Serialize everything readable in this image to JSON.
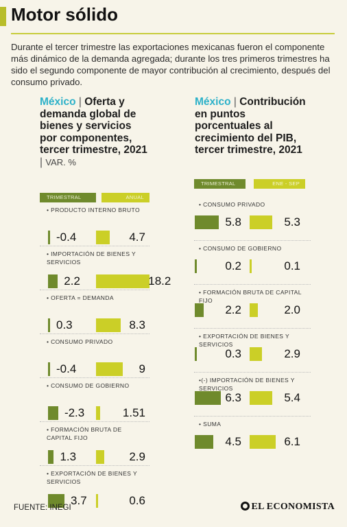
{
  "header": {
    "title": "Motor sólido",
    "intro": "Durante el tercer trimestre las exportaciones mexicanas fueron el componente más dinámico de la demanda agregada; durante los tres primeros trimestres ha sido el segundo componente de mayor contribución al crecimiento, después del consumo privado."
  },
  "footer": {
    "source": "FUENTE: INEGI",
    "brand": "EL ECONOMISTA"
  },
  "chart_data": [
    {
      "type": "bar",
      "country": "México",
      "title": "Oferta y demanda global de bienes y servicios por componentes, tercer trimestre, 2021",
      "unit": "VAR. %",
      "categories": [
        "PRODUCTO INTERNO BRUTO",
        "IMPORTACIÓN DE BIENES Y SERVICIOS",
        "OFERTA = DEMANDA",
        "CONSUMO PRIVADO",
        "CONSUMO DE GOBIERNO",
        "FORMACIÓN BRUTA DE CAPITAL FIJO",
        "EXPORTACIÓN DE BIENES Y SERVICIOS"
      ],
      "series": [
        {
          "name": "TRIMESTRAL",
          "values": [
            -0.4,
            2.2,
            0.3,
            -0.4,
            -2.3,
            1.3,
            3.7
          ],
          "labels": [
            "-0.4",
            "2.2",
            "0.3",
            "-0.4",
            "-2.3",
            "1.3",
            "3.7"
          ]
        },
        {
          "name": "ANUAL",
          "values": [
            4.7,
            18.2,
            8.3,
            9,
            1.51,
            2.9,
            0.6
          ],
          "labels": [
            "4.7",
            "18.2",
            "8.3",
            "9",
            "1.51",
            "2.9",
            "0.6"
          ]
        }
      ],
      "colors": [
        "#6f8a2c",
        "#cbcf27"
      ]
    },
    {
      "type": "bar",
      "country": "México",
      "title": "Contribución en puntos porcentuales al crecimiento del PIB, tercer trimestre, 2021",
      "categories": [
        "CONSUMO PRIVADO",
        "CONSUMO DE GOBIERNO",
        "FORMACIÓN BRUTA DE CAPITAL FIJO",
        "EXPORTACIÓN DE BIENES Y SERVICIOS",
        "•(-) IMPORTACIÓN DE BIENES Y SERVICIOS",
        "SUMA"
      ],
      "series": [
        {
          "name": "TRIMESTRAL",
          "values": [
            5.8,
            0.2,
            2.2,
            0.3,
            6.3,
            4.5
          ],
          "labels": [
            "5.8",
            "0.2",
            "2.2",
            "0.3",
            "6.3",
            "4.5"
          ]
        },
        {
          "name": "ENE - SEP",
          "values": [
            5.3,
            0.1,
            2.0,
            2.9,
            5.4,
            6.1
          ],
          "labels": [
            "5.3",
            "0.1",
            "2.0",
            "2.9",
            "5.4",
            "6.1"
          ]
        }
      ],
      "colors": [
        "#6f8a2c",
        "#cbcf27"
      ]
    }
  ]
}
